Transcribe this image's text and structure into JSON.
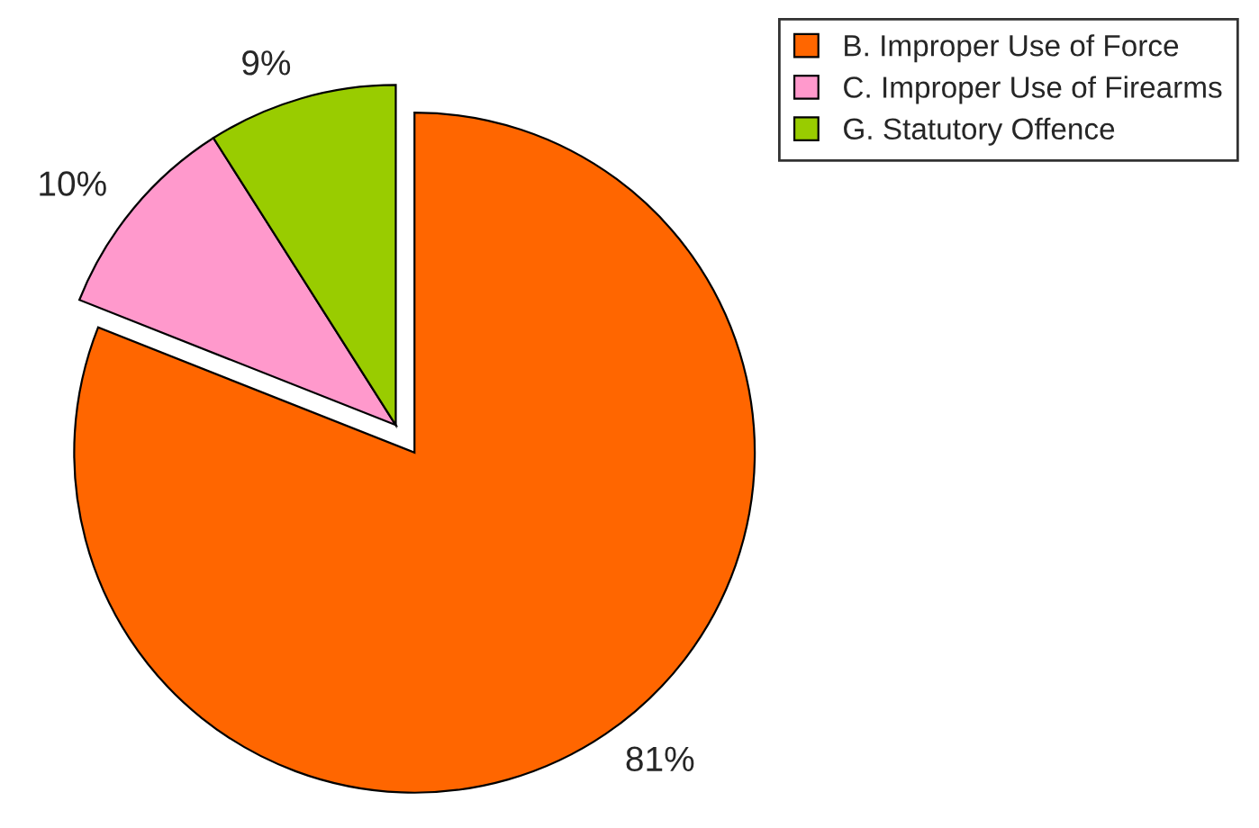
{
  "chart_data": {
    "type": "pie",
    "categories": [
      "B. Improper Use of Force",
      "C. Improper Use of Firearms",
      "G. Statutory Offence"
    ],
    "values": [
      81,
      10,
      9
    ],
    "colors": [
      "#ff6600",
      "#ff99cc",
      "#99cc00"
    ],
    "value_labels": [
      "81%",
      "10%",
      "9%"
    ],
    "legend": "top right"
  }
}
